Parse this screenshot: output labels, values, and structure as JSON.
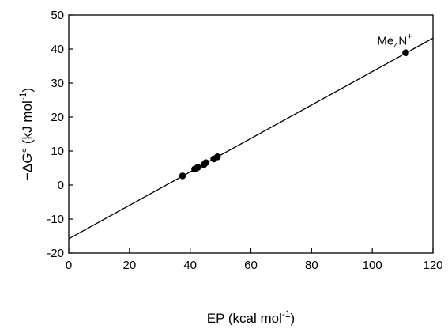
{
  "chart_data": {
    "type": "scatter",
    "xlabel": {
      "main": "EP (kcal mol",
      "sup": "-1",
      "tail": ")"
    },
    "ylabel": {
      "pre": "−Δ",
      "italic": "G",
      "deg": "°",
      "mid": " (kJ mol",
      "sup": "-1",
      "tail": ")"
    },
    "xlim": [
      0,
      120
    ],
    "ylim": [
      -20,
      50
    ],
    "x_ticks": [
      0,
      20,
      40,
      60,
      80,
      100,
      120
    ],
    "y_ticks": [
      -20,
      -10,
      0,
      10,
      20,
      30,
      40,
      50
    ],
    "grid": false,
    "series": [
      {
        "points": [
          {
            "x": 37.5,
            "y": 2.7
          },
          {
            "x": 41.5,
            "y": 4.7
          },
          {
            "x": 42.5,
            "y": 5.2
          },
          {
            "x": 44.5,
            "y": 6.0
          },
          {
            "x": 45.2,
            "y": 6.6
          },
          {
            "x": 47.8,
            "y": 7.7
          },
          {
            "x": 49.0,
            "y": 8.3
          },
          {
            "x": 111.0,
            "y": 38.9
          }
        ]
      }
    ],
    "fit_line": {
      "x": [
        0,
        120
      ],
      "y": [
        -15.8,
        43.2
      ]
    },
    "annotations": [
      {
        "base": "Me",
        "sub": "4",
        "mid": "N",
        "sup": "+",
        "x": 111.0,
        "y": 38.9
      }
    ]
  }
}
